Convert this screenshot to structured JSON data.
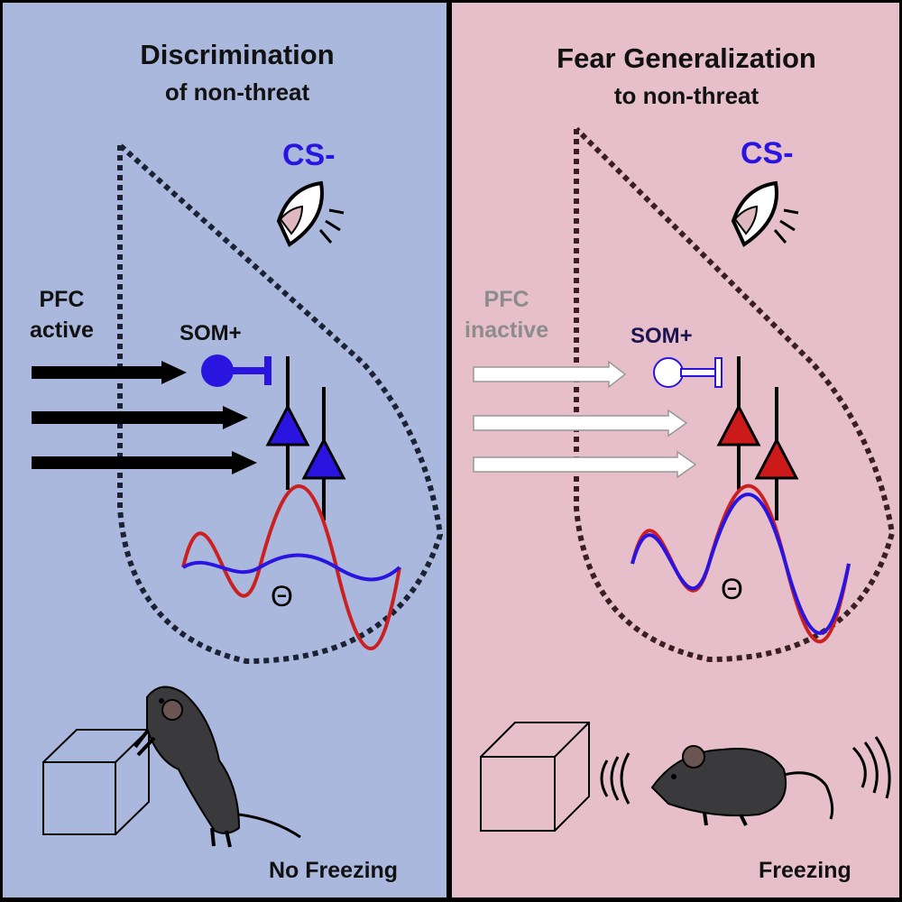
{
  "left_panel": {
    "title": "Discrimination",
    "subtitle": "of non-threat",
    "stimulus": "CS-",
    "pfc_line1": "PFC",
    "pfc_line2": "active",
    "som_label": "SOM+",
    "theta_symbol": "Θ",
    "outcome": "No Freezing"
  },
  "right_panel": {
    "title": "Fear Generalization",
    "subtitle": "to non-threat",
    "stimulus": "CS-",
    "pfc_line1": "PFC",
    "pfc_line2": "inactive",
    "som_label": "SOM+",
    "theta_symbol": "Θ",
    "outcome": "Freezing"
  },
  "colors": {
    "left_background": "#aab8de",
    "right_background": "#e6bfcb",
    "som_active": "#2a14e0",
    "som_inactive": "#ffffff",
    "pyramidal_left": "#2a14e0",
    "pyramidal_right": "#cc1a1a",
    "theta_red": "#cc2020",
    "theta_blue": "#2a14e0"
  }
}
